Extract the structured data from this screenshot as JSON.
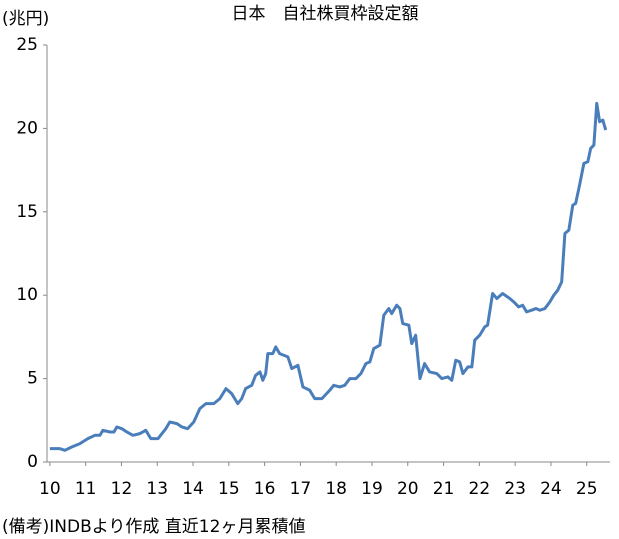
{
  "chart_data": {
    "type": "line",
    "title": "日本　自社株買枠設定額",
    "y_label": "(兆円)",
    "note": "(備考)INDBより作成 直近12ヶ月累積値",
    "x": [
      10.0,
      10.28,
      10.42,
      10.61,
      10.84,
      11.06,
      11.26,
      11.4,
      11.48,
      11.68,
      11.79,
      11.87,
      12.01,
      12.15,
      12.32,
      12.51,
      12.68,
      12.82,
      13.02,
      13.24,
      13.35,
      13.55,
      13.69,
      13.85,
      14.02,
      14.19,
      14.36,
      14.58,
      14.75,
      14.92,
      15.08,
      15.25,
      15.36,
      15.47,
      15.64,
      15.75,
      15.87,
      15.95,
      16.03,
      16.09,
      16.23,
      16.31,
      16.42,
      16.65,
      16.76,
      16.93,
      17.07,
      17.26,
      17.4,
      17.6,
      17.82,
      17.93,
      18.1,
      18.24,
      18.38,
      18.55,
      18.69,
      18.83,
      18.94,
      19.05,
      19.22,
      19.33,
      19.47,
      19.55,
      19.69,
      19.78,
      19.86,
      20.03,
      20.11,
      20.22,
      20.34,
      20.47,
      20.61,
      20.81,
      20.95,
      21.12,
      21.23,
      21.34,
      21.45,
      21.54,
      21.68,
      21.79,
      21.87,
      22.01,
      22.15,
      22.23,
      22.37,
      22.49,
      22.65,
      22.85,
      22.96,
      23.1,
      23.21,
      23.32,
      23.46,
      23.58,
      23.69,
      23.83,
      23.97,
      24.08,
      24.19,
      24.3,
      24.39,
      24.5,
      24.61,
      24.69,
      24.8,
      24.92,
      25.03,
      25.11,
      25.2,
      25.28,
      25.36,
      25.45,
      25.53
    ],
    "series": [
      {
        "color": "#4a7ebb",
        "values": [
          0.8,
          0.8,
          0.7,
          0.9,
          1.1,
          1.4,
          1.6,
          1.6,
          1.9,
          1.8,
          1.8,
          2.1,
          2.0,
          1.8,
          1.6,
          1.7,
          1.9,
          1.4,
          1.4,
          2.0,
          2.4,
          2.3,
          2.1,
          2.0,
          2.4,
          3.2,
          3.5,
          3.5,
          3.8,
          4.4,
          4.1,
          3.5,
          3.8,
          4.4,
          4.6,
          5.2,
          5.4,
          4.9,
          5.3,
          6.5,
          6.5,
          6.9,
          6.5,
          6.3,
          5.6,
          5.8,
          4.5,
          4.3,
          3.8,
          3.8,
          4.3,
          4.6,
          4.5,
          4.6,
          5.0,
          5.0,
          5.3,
          5.9,
          6.0,
          6.8,
          7.0,
          8.8,
          9.2,
          8.9,
          9.4,
          9.2,
          8.3,
          8.2,
          7.1,
          7.6,
          5.0,
          5.9,
          5.4,
          5.3,
          5.0,
          5.1,
          4.9,
          6.1,
          6.0,
          5.3,
          5.7,
          5.7,
          7.3,
          7.6,
          8.1,
          8.2,
          10.1,
          9.8,
          10.1,
          9.8,
          9.6,
          9.3,
          9.4,
          9.0,
          9.1,
          9.2,
          9.1,
          9.2,
          9.6,
          10.0,
          10.3,
          10.8,
          13.7,
          13.9,
          15.4,
          15.5,
          16.6,
          17.9,
          18.0,
          18.8,
          19.0,
          21.5,
          20.4,
          20.5,
          19.9
        ]
      }
    ],
    "xlim": [
      9.92,
      25.65
    ],
    "ylim": [
      0,
      25
    ],
    "xticks": [
      10,
      11,
      12,
      13,
      14,
      15,
      16,
      17,
      18,
      19,
      20,
      21,
      22,
      23,
      24,
      25
    ],
    "yticks": [
      0,
      5,
      10,
      15,
      20,
      25
    ],
    "grid": false
  }
}
